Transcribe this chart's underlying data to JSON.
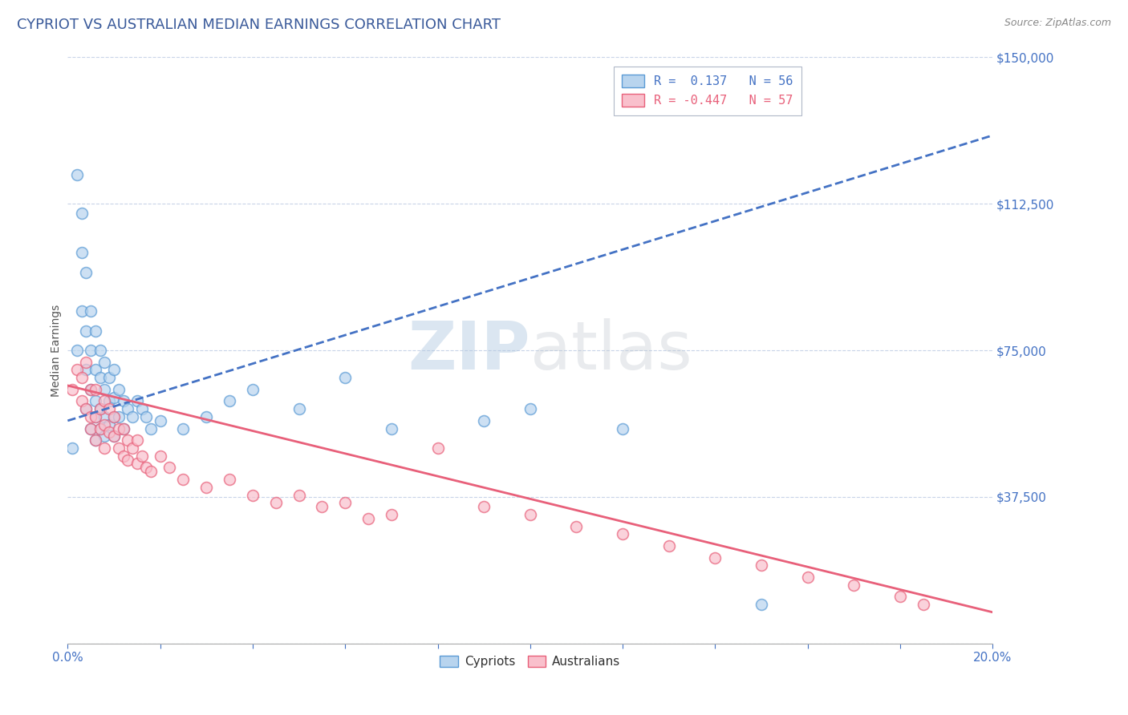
{
  "title": "CYPRIOT VS AUSTRALIAN MEDIAN EARNINGS CORRELATION CHART",
  "source": "Source: ZipAtlas.com",
  "ylabel": "Median Earnings",
  "xlim": [
    0.0,
    0.2
  ],
  "ylim": [
    0,
    150000
  ],
  "yticks": [
    0,
    37500,
    75000,
    112500,
    150000
  ],
  "ytick_labels": [
    "",
    "$37,500",
    "$75,000",
    "$112,500",
    "$150,000"
  ],
  "xticks": [
    0.0,
    0.02,
    0.04,
    0.06,
    0.08,
    0.1,
    0.12,
    0.14,
    0.16,
    0.18,
    0.2
  ],
  "cypriot_R": 0.137,
  "cypriot_N": 56,
  "australian_R": -0.447,
  "australian_N": 57,
  "cypriot_color": "#b8d4ee",
  "cypriot_edge_color": "#5b9bd5",
  "australian_color": "#f9c0cc",
  "australian_edge_color": "#e8607a",
  "cypriot_line_color": "#4472c4",
  "australian_line_color": "#e8607a",
  "background_color": "#ffffff",
  "grid_color": "#c8d4e8",
  "cypriot_x": [
    0.001,
    0.002,
    0.002,
    0.003,
    0.003,
    0.003,
    0.004,
    0.004,
    0.004,
    0.004,
    0.005,
    0.005,
    0.005,
    0.005,
    0.006,
    0.006,
    0.006,
    0.006,
    0.006,
    0.007,
    0.007,
    0.007,
    0.007,
    0.008,
    0.008,
    0.008,
    0.008,
    0.009,
    0.009,
    0.009,
    0.01,
    0.01,
    0.01,
    0.01,
    0.011,
    0.011,
    0.012,
    0.012,
    0.013,
    0.014,
    0.015,
    0.016,
    0.017,
    0.018,
    0.02,
    0.025,
    0.03,
    0.035,
    0.04,
    0.05,
    0.06,
    0.07,
    0.09,
    0.1,
    0.12,
    0.15
  ],
  "cypriot_y": [
    50000,
    120000,
    75000,
    100000,
    85000,
    110000,
    95000,
    80000,
    70000,
    60000,
    85000,
    75000,
    65000,
    55000,
    80000,
    70000,
    62000,
    58000,
    52000,
    75000,
    68000,
    60000,
    55000,
    72000,
    65000,
    58000,
    53000,
    68000,
    62000,
    56000,
    70000,
    63000,
    58000,
    53000,
    65000,
    58000,
    62000,
    55000,
    60000,
    58000,
    62000,
    60000,
    58000,
    55000,
    57000,
    55000,
    58000,
    62000,
    65000,
    60000,
    68000,
    55000,
    57000,
    60000,
    55000,
    10000
  ],
  "australian_x": [
    0.001,
    0.002,
    0.003,
    0.003,
    0.004,
    0.004,
    0.005,
    0.005,
    0.005,
    0.006,
    0.006,
    0.006,
    0.007,
    0.007,
    0.008,
    0.008,
    0.008,
    0.009,
    0.009,
    0.01,
    0.01,
    0.011,
    0.011,
    0.012,
    0.012,
    0.013,
    0.013,
    0.014,
    0.015,
    0.015,
    0.016,
    0.017,
    0.018,
    0.02,
    0.022,
    0.025,
    0.03,
    0.035,
    0.04,
    0.045,
    0.05,
    0.055,
    0.06,
    0.065,
    0.07,
    0.08,
    0.09,
    0.1,
    0.11,
    0.12,
    0.13,
    0.14,
    0.15,
    0.16,
    0.17,
    0.18,
    0.185
  ],
  "australian_y": [
    65000,
    70000,
    68000,
    62000,
    72000,
    60000,
    65000,
    58000,
    55000,
    65000,
    58000,
    52000,
    60000,
    55000,
    62000,
    56000,
    50000,
    60000,
    54000,
    58000,
    53000,
    55000,
    50000,
    55000,
    48000,
    52000,
    47000,
    50000,
    52000,
    46000,
    48000,
    45000,
    44000,
    48000,
    45000,
    42000,
    40000,
    42000,
    38000,
    36000,
    38000,
    35000,
    36000,
    32000,
    33000,
    50000,
    35000,
    33000,
    30000,
    28000,
    25000,
    22000,
    20000,
    17000,
    15000,
    12000,
    10000
  ],
  "cypriot_trendline_x": [
    0.0,
    0.2
  ],
  "cypriot_trendline_y": [
    57000,
    130000
  ],
  "australian_trendline_x": [
    0.0,
    0.2
  ],
  "australian_trendline_y": [
    66000,
    8000
  ],
  "title_fontsize": 13,
  "axis_label_fontsize": 10,
  "tick_fontsize": 11,
  "legend_fontsize": 11,
  "source_fontsize": 9,
  "watermark_fontsize": 60
}
